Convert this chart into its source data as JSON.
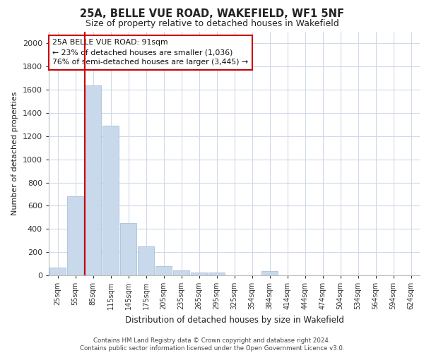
{
  "title": "25A, BELLE VUE ROAD, WAKEFIELD, WF1 5NF",
  "subtitle": "Size of property relative to detached houses in Wakefield",
  "xlabel": "Distribution of detached houses by size in Wakefield",
  "ylabel": "Number of detached properties",
  "bar_color": "#c8d9ec",
  "bar_edge_color": "#a8c0d8",
  "categories": [
    "25sqm",
    "55sqm",
    "85sqm",
    "115sqm",
    "145sqm",
    "175sqm",
    "205sqm",
    "235sqm",
    "265sqm",
    "295sqm",
    "325sqm",
    "354sqm",
    "384sqm",
    "414sqm",
    "444sqm",
    "474sqm",
    "504sqm",
    "534sqm",
    "564sqm",
    "594sqm",
    "624sqm"
  ],
  "values": [
    65,
    680,
    1640,
    1290,
    450,
    250,
    80,
    45,
    25,
    22,
    0,
    0,
    35,
    0,
    0,
    0,
    0,
    0,
    0,
    0,
    0
  ],
  "property_line_color": "#cc0000",
  "annotation_line1": "25A BELLE VUE ROAD: 91sqm",
  "annotation_line2": "← 23% of detached houses are smaller (1,036)",
  "annotation_line3": "76% of semi-detached houses are larger (3,445) →",
  "annotation_box_color": "#cc0000",
  "ylim": [
    0,
    2100
  ],
  "yticks": [
    0,
    200,
    400,
    600,
    800,
    1000,
    1200,
    1400,
    1600,
    1800,
    2000
  ],
  "footer_line1": "Contains HM Land Registry data © Crown copyright and database right 2024.",
  "footer_line2": "Contains public sector information licensed under the Open Government Licence v3.0.",
  "bg_color": "#ffffff",
  "grid_color": "#d0d9ea"
}
